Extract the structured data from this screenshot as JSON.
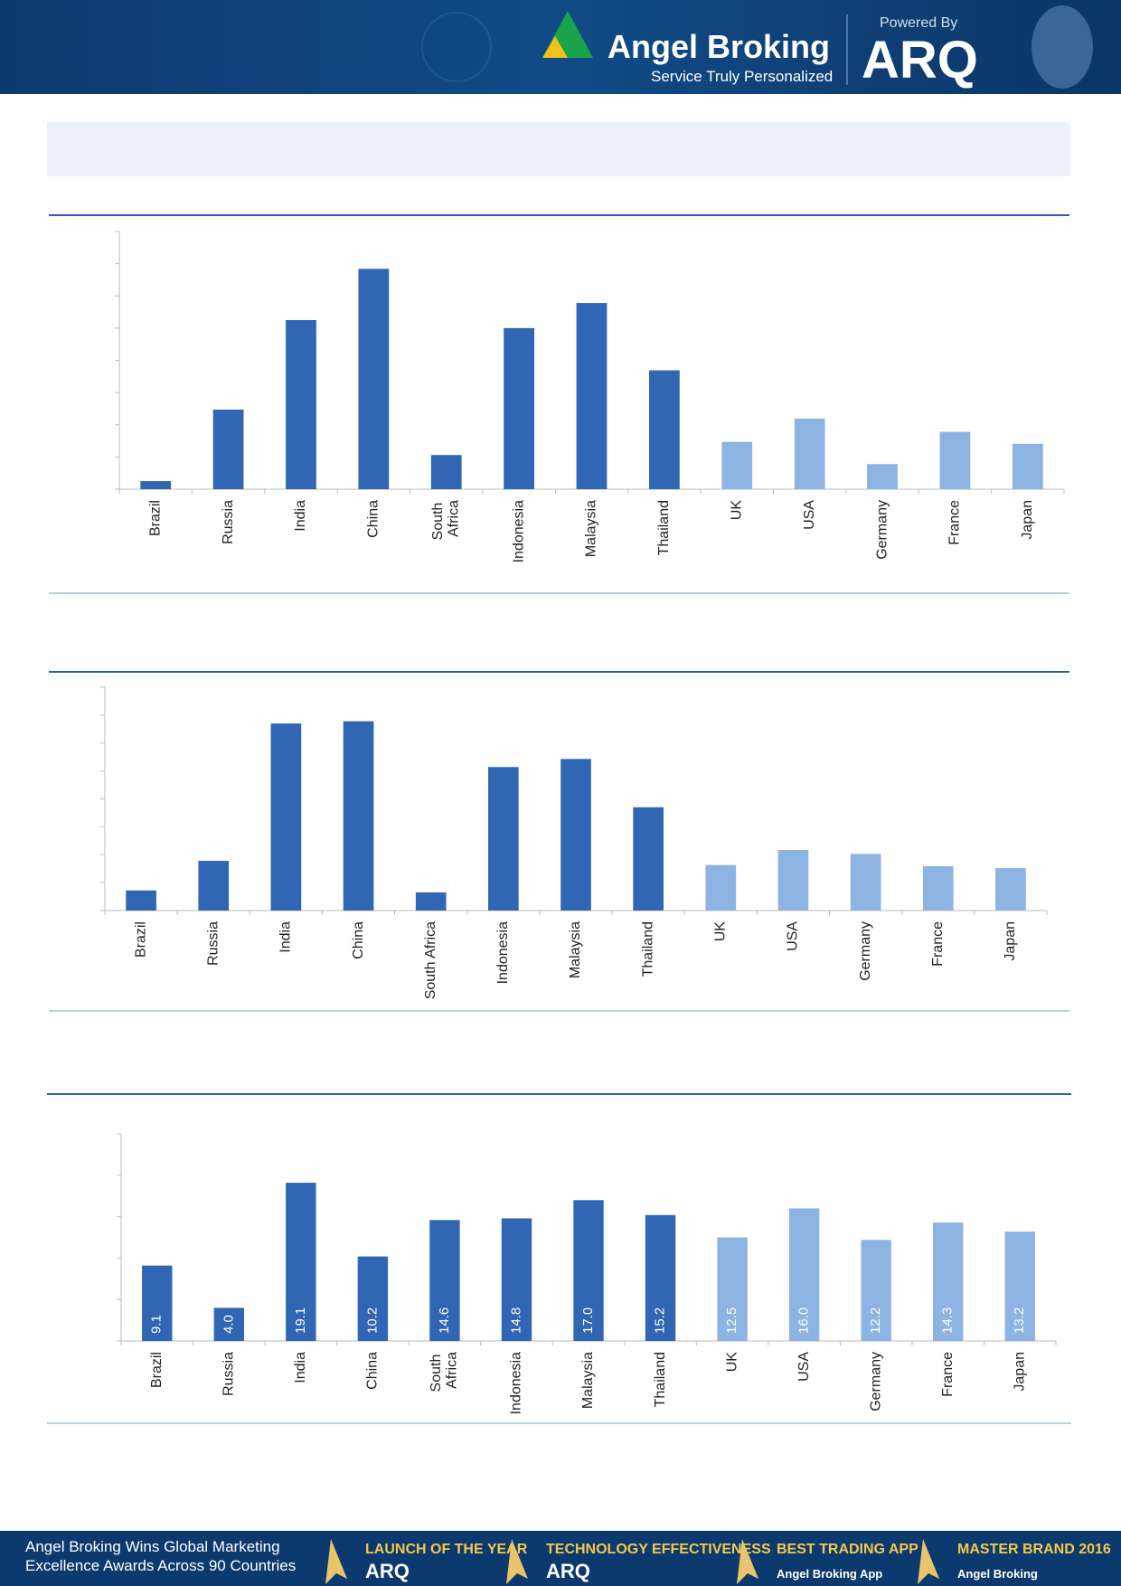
{
  "header": {
    "brand": "Angel Broking",
    "tagline": "Service Truly Personalized",
    "powered": "Powered By",
    "product": "ARQ"
  },
  "footer": {
    "headline": "Angel Broking Wins Global Marketing Excellence Awards Across 90 Countries",
    "awards": [
      {
        "title": "LAUNCH OF THE YEAR",
        "sub": "ARQ"
      },
      {
        "title": "TECHNOLOGY EFFECTIVENESS",
        "sub": "ARQ"
      },
      {
        "title": "BEST TRADING APP",
        "sub": "Angel Broking App"
      },
      {
        "title": "MASTER BRAND 2016",
        "sub": "Angel Broking"
      }
    ]
  },
  "chart_data": [
    {
      "type": "bar",
      "wrap_labels": true,
      "categories": [
        "Brazil",
        "Russia",
        "India",
        "China",
        "South Africa",
        "Indonesia",
        "Malaysia",
        "Thailand",
        "UK",
        "USA",
        "Germany",
        "France",
        "Japan"
      ],
      "values": [
        0.25,
        2.47,
        5.25,
        6.84,
        1.06,
        5.0,
        5.78,
        3.69,
        1.47,
        2.19,
        0.78,
        1.78,
        1.41
      ],
      "colors": [
        "#3066b4",
        "#3066b4",
        "#3066b4",
        "#3066b4",
        "#3066b4",
        "#3066b4",
        "#3066b4",
        "#3066b4",
        "#8db3e2",
        "#8db3e2",
        "#8db3e2",
        "#8db3e2",
        "#8db3e2"
      ],
      "ylim": [
        0,
        8
      ],
      "yticks": [
        0,
        1,
        2,
        3,
        4,
        5,
        6,
        7,
        8
      ]
    },
    {
      "type": "bar",
      "wrap_labels": false,
      "categories": [
        "Brazil",
        "Russia",
        "India",
        "China",
        "South Africa",
        "Indonesia",
        "Malaysia",
        "Thailand",
        "UK",
        "USA",
        "Germany",
        "France",
        "Japan"
      ],
      "values": [
        0.72,
        1.78,
        6.7,
        6.78,
        0.65,
        5.14,
        5.43,
        3.7,
        1.63,
        2.17,
        2.03,
        1.59,
        1.52
      ],
      "colors": [
        "#3066b4",
        "#3066b4",
        "#3066b4",
        "#3066b4",
        "#3066b4",
        "#3066b4",
        "#3066b4",
        "#3066b4",
        "#8db3e2",
        "#8db3e2",
        "#8db3e2",
        "#8db3e2",
        "#8db3e2"
      ],
      "ylim": [
        0,
        8
      ],
      "yticks": [
        0,
        1,
        2,
        3,
        4,
        5,
        6,
        7,
        8
      ]
    },
    {
      "type": "bar",
      "wrap_labels": true,
      "categories": [
        "Brazil",
        "Russia",
        "India",
        "China",
        "South Africa",
        "Indonesia",
        "Malaysia",
        "Thailand",
        "UK",
        "USA",
        "Germany",
        "France",
        "Japan"
      ],
      "values": [
        9.1,
        4.0,
        19.1,
        10.2,
        14.6,
        14.8,
        17.0,
        15.2,
        12.5,
        16.0,
        12.2,
        14.3,
        13.2
      ],
      "value_labels": [
        "9.1",
        "4.0",
        "19.1",
        "10.2",
        "14.6",
        "14.8",
        "17.0",
        "15.2",
        "12.5",
        "16.0",
        "12.2",
        "14.3",
        "13.2"
      ],
      "colors": [
        "#3066b4",
        "#3066b4",
        "#3066b4",
        "#3066b4",
        "#3066b4",
        "#3066b4",
        "#3066b4",
        "#3066b4",
        "#8db3e2",
        "#8db3e2",
        "#8db3e2",
        "#8db3e2",
        "#8db3e2"
      ],
      "ylim": [
        0,
        25
      ],
      "yticks": [
        0,
        5,
        10,
        15,
        20,
        25
      ]
    }
  ]
}
